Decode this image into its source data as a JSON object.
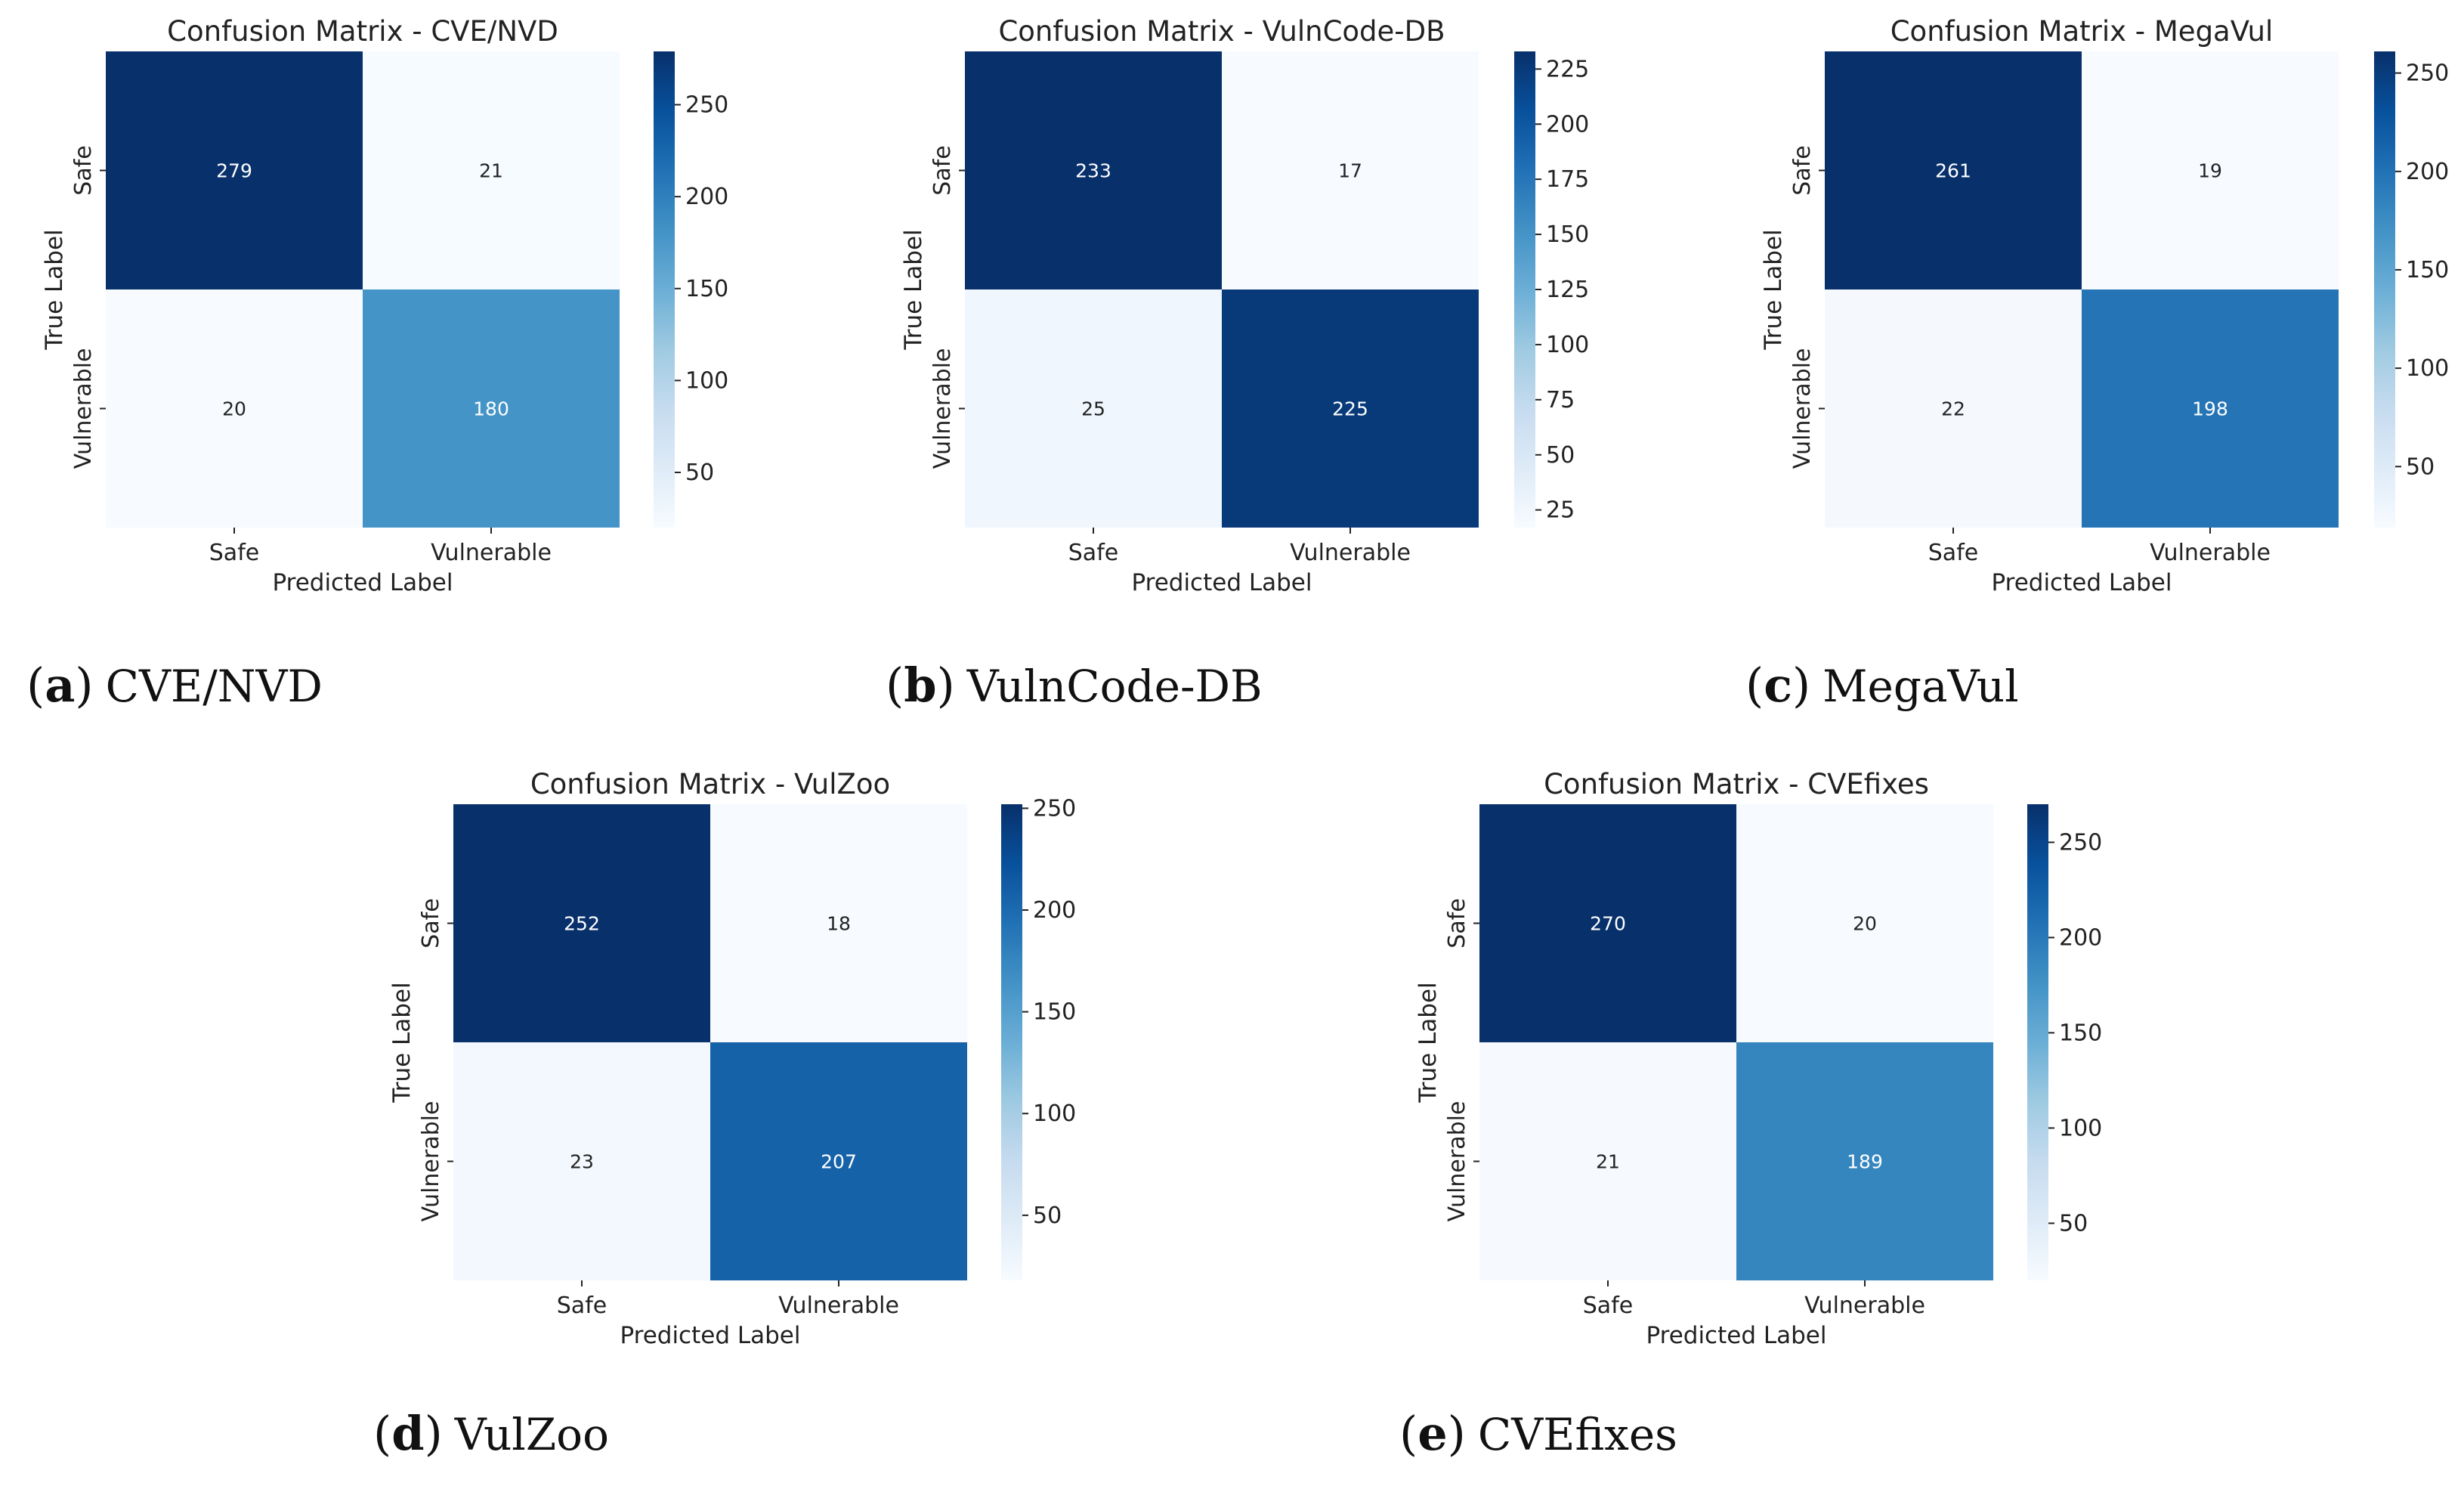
{
  "chart_data": [
    {
      "type": "heatmap",
      "title": "Confusion Matrix - CVE/NVD",
      "xlabel": "Predicted Label",
      "ylabel": "True Label",
      "x_categories": [
        "Safe",
        "Vulnerable"
      ],
      "y_categories": [
        "Safe",
        "Vulnerable"
      ],
      "values": [
        [
          279,
          21
        ],
        [
          20,
          180
        ]
      ],
      "colormap": "Blues",
      "colorbar_ticks": [
        50,
        100,
        150,
        200,
        250
      ],
      "caption": {
        "letter": "a",
        "name": "CVE/NVD"
      }
    },
    {
      "type": "heatmap",
      "title": "Confusion Matrix - VulnCode-DB",
      "xlabel": "Predicted Label",
      "ylabel": "True Label",
      "x_categories": [
        "Safe",
        "Vulnerable"
      ],
      "y_categories": [
        "Safe",
        "Vulnerable"
      ],
      "values": [
        [
          233,
          17
        ],
        [
          25,
          225
        ]
      ],
      "colormap": "Blues",
      "colorbar_ticks": [
        25,
        50,
        75,
        100,
        125,
        150,
        175,
        200,
        225
      ],
      "caption": {
        "letter": "b",
        "name": "VulnCode-DB"
      }
    },
    {
      "type": "heatmap",
      "title": "Confusion Matrix - MegaVul",
      "xlabel": "Predicted Label",
      "ylabel": "True Label",
      "x_categories": [
        "Safe",
        "Vulnerable"
      ],
      "y_categories": [
        "Safe",
        "Vulnerable"
      ],
      "values": [
        [
          261,
          19
        ],
        [
          22,
          198
        ]
      ],
      "colormap": "Blues",
      "colorbar_ticks": [
        50,
        100,
        150,
        200,
        250
      ],
      "caption": {
        "letter": "c",
        "name": "MegaVul"
      }
    },
    {
      "type": "heatmap",
      "title": "Confusion Matrix - VulZoo",
      "xlabel": "Predicted Label",
      "ylabel": "True Label",
      "x_categories": [
        "Safe",
        "Vulnerable"
      ],
      "y_categories": [
        "Safe",
        "Vulnerable"
      ],
      "values": [
        [
          252,
          18
        ],
        [
          23,
          207
        ]
      ],
      "colormap": "Blues",
      "colorbar_ticks": [
        50,
        100,
        150,
        200,
        250
      ],
      "caption": {
        "letter": "d",
        "name": "VulZoo"
      }
    },
    {
      "type": "heatmap",
      "title": "Confusion Matrix - CVEfixes",
      "xlabel": "Predicted Label",
      "ylabel": "True Label",
      "x_categories": [
        "Safe",
        "Vulnerable"
      ],
      "y_categories": [
        "Safe",
        "Vulnerable"
      ],
      "values": [
        [
          270,
          20
        ],
        [
          21,
          189
        ]
      ],
      "colormap": "Blues",
      "colorbar_ticks": [
        50,
        100,
        150,
        200,
        250
      ],
      "caption": {
        "letter": "e",
        "name": "CVEfixes"
      }
    }
  ]
}
